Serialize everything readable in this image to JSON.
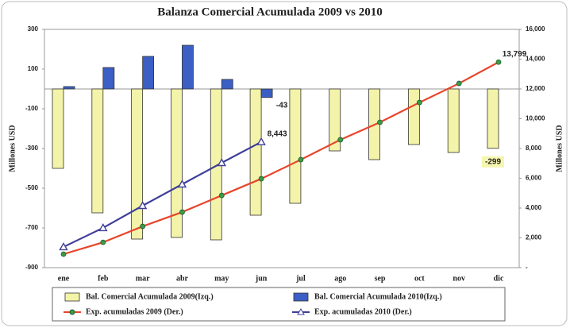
{
  "chart_data": {
    "type": "bar",
    "title": "Balanza Comercial Acumulada 2009 vs 2010",
    "y_label": "Millones USD",
    "y2_label": "Millones USD",
    "categories": [
      "ene",
      "feb",
      "mar",
      "abr",
      "may",
      "jun",
      "jul",
      "ago",
      "sep",
      "oct",
      "nov",
      "dic"
    ],
    "ylim": [
      -900,
      300
    ],
    "yticks": [
      -900,
      -700,
      -500,
      -300,
      -100,
      100,
      300
    ],
    "y2lim": [
      0,
      16000
    ],
    "y2ticks": [
      {
        "value": 0,
        "label": "-"
      },
      {
        "value": 2000,
        "label": "2,000"
      },
      {
        "value": 4000,
        "label": "4,000"
      },
      {
        "value": 6000,
        "label": "6,000"
      },
      {
        "value": 8000,
        "label": "8,000"
      },
      {
        "value": 10000,
        "label": "10,000"
      },
      {
        "value": 12000,
        "label": "12,000"
      },
      {
        "value": 14000,
        "label": "14,000"
      },
      {
        "value": 16000,
        "label": "16,000"
      }
    ],
    "series": [
      {
        "name": "Bal. Comercial Acumulada 2009(Izq.)",
        "type": "bar",
        "axis": "y",
        "color": "#f3f3a9",
        "values": [
          -400,
          -624,
          -756,
          -748,
          -760,
          -636,
          -576,
          -312,
          -356,
          -280,
          -320,
          -299
        ],
        "value_labels": [
          null,
          null,
          null,
          null,
          null,
          null,
          null,
          null,
          null,
          null,
          null,
          "-299"
        ]
      },
      {
        "name": "Bal. Comercial Acumulada 2010(Izq.)",
        "type": "bar",
        "axis": "y",
        "color": "#3b5fc4",
        "values": [
          12,
          108,
          164,
          220,
          48,
          -43,
          null,
          null,
          null,
          null,
          null,
          null
        ],
        "value_labels": [
          null,
          null,
          null,
          null,
          null,
          "-43",
          null,
          null,
          null,
          null,
          null,
          null
        ]
      },
      {
        "name": "Exp. acumuladas 2009 (Der.)",
        "type": "line",
        "axis": "y2",
        "color": "#e8452c",
        "marker": "circle",
        "marker_color": "#3c9a48",
        "values": [
          907,
          1700,
          2770,
          3730,
          4850,
          5970,
          7250,
          8590,
          9760,
          11090,
          12370,
          13799
        ],
        "value_labels": [
          null,
          null,
          null,
          null,
          null,
          null,
          null,
          null,
          null,
          null,
          null,
          "13,799"
        ]
      },
      {
        "name": "Exp. acumuladas 2010 (Der.)",
        "type": "line",
        "axis": "y2",
        "color": "#3f3f9a",
        "marker": "triangle",
        "marker_color": "#ffffff",
        "values": [
          1390,
          2670,
          4160,
          5600,
          7040,
          8443,
          null,
          null,
          null,
          null,
          null,
          null
        ],
        "value_labels": [
          null,
          null,
          null,
          null,
          null,
          "8,443",
          null,
          null,
          null,
          null,
          null,
          null
        ]
      }
    ]
  }
}
